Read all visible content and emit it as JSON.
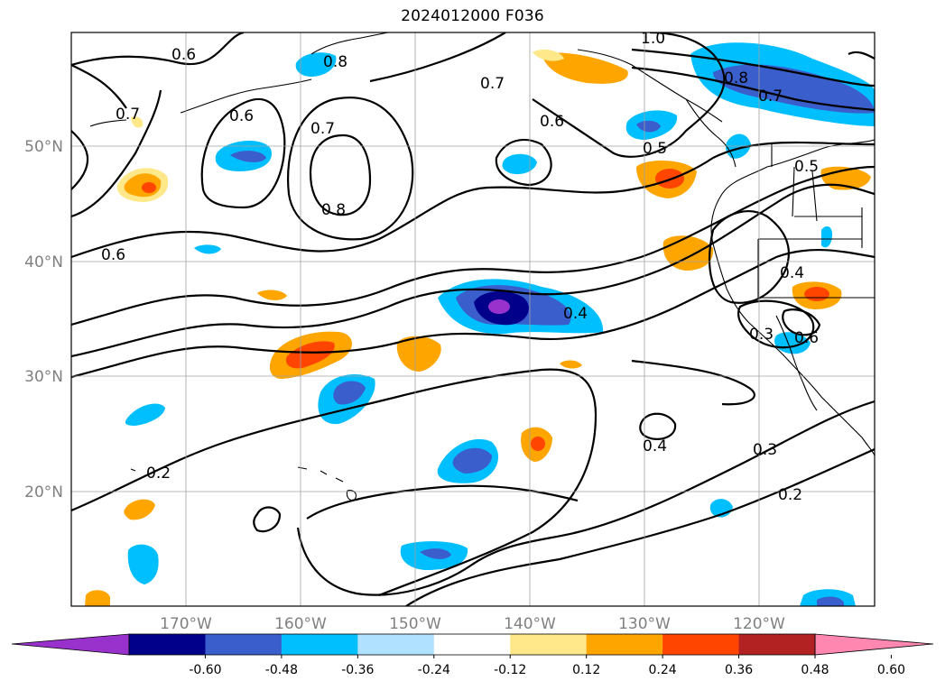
{
  "title": "2024012000 F036",
  "map": {
    "lat_labels": [
      "50°N",
      "40°N",
      "30°N",
      "20°N"
    ],
    "lon_labels": [
      "170°W",
      "160°W",
      "150°W",
      "140°W",
      "130°W",
      "120°W"
    ],
    "grid": true
  },
  "contour_labels": [
    "0.6",
    "0.7",
    "0.8",
    "0.7",
    "0.6",
    "0.7",
    "0.8",
    "0.6",
    "0.8",
    "0.7",
    "1.0",
    "0.5",
    "0.5",
    "0.6",
    "0.4",
    "0.4",
    "0.3",
    "0.6",
    "0.4",
    "0.3",
    "0.2",
    "0.2"
  ],
  "colorbar": {
    "ticks": [
      "-0.60",
      "-0.48",
      "-0.36",
      "-0.24",
      "-0.12",
      "0.12",
      "0.24",
      "0.36",
      "0.48",
      "0.60"
    ],
    "colors": [
      "#9932cc",
      "#00008b",
      "#3a5fcd",
      "#00bfff",
      "#b0e2ff",
      "#ffffff",
      "#ffe88a",
      "#ffa500",
      "#ff4500",
      "#b22222",
      "#ff87b0"
    ],
    "extend": "both"
  }
}
